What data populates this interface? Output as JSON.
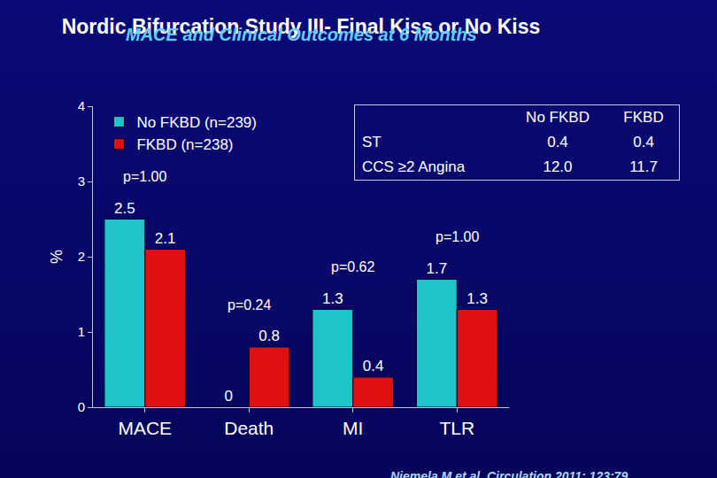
{
  "chart_data": {
    "type": "bar",
    "title": "Nordic Bifurcation Study III- Final Kiss or No Kiss",
    "subtitle": "MACE and Clinical Outcomes at 6 Months",
    "y_label": "%",
    "categories": [
      "MACE",
      "Death",
      "MI",
      "TLR"
    ],
    "series": [
      {
        "name": "No FKBD (n=239)",
        "color": "#1fc4c8",
        "values": [
          2.5,
          0,
          1.3,
          1.7
        ]
      },
      {
        "name": "FKBD (n=238)",
        "color": "#e01010",
        "values": [
          2.1,
          0.8,
          0.4,
          1.3
        ]
      }
    ],
    "ylim": [
      0,
      4
    ],
    "yticks": [
      0,
      1,
      2,
      3,
      4
    ],
    "grid": false,
    "legend": "top left",
    "data_labels": true,
    "annotations": [
      {
        "category": "MACE",
        "text": "p=1.00"
      },
      {
        "category": "Death",
        "text": "p=0.24"
      },
      {
        "category": "MI",
        "text": "p=0.62"
      },
      {
        "category": "TLR",
        "text": "p=1.00"
      }
    ],
    "table": {
      "header": [
        "No FKBD",
        "FKBD"
      ],
      "rows": [
        {
          "label": "ST",
          "values": [
            "0.4",
            "0.4"
          ]
        },
        {
          "label": "CCS ≥2 Angina",
          "values": [
            "12.0",
            "11.7"
          ]
        }
      ]
    },
    "source": "Niemela M et al. Circulation 2011: 123:79"
  }
}
